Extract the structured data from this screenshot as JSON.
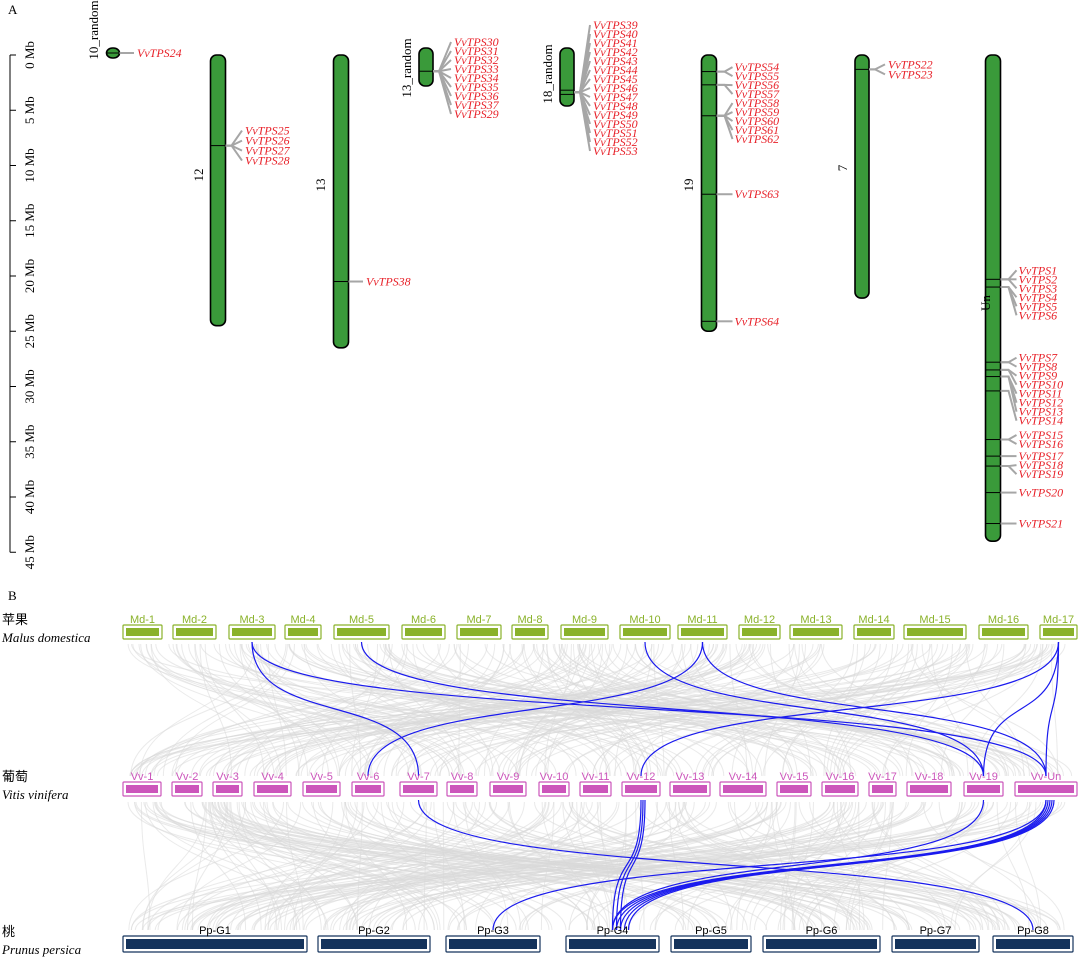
{
  "panel_a": {
    "label": "A",
    "scale": {
      "max_mb": 45,
      "ticks": [
        "0 Mb",
        "5 Mb",
        "10 Mb",
        "15 Mb",
        "20 Mb",
        "25 Mb",
        "30 Mb",
        "35 Mb",
        "40 Mb",
        "45 Mb"
      ]
    },
    "chromosomes": [
      {
        "name": "10_random",
        "length_mb": 1.0,
        "marks": [
          0.5
        ],
        "genes": [
          {
            "label": "VvTPS24",
            "pos_mb": 0.5
          }
        ]
      },
      {
        "name": "12",
        "length_mb": 24.5,
        "marks": [
          8.2
        ],
        "genes": [
          {
            "label": "VvTPS25",
            "pos_mb": 8.2
          },
          {
            "label": "VvTPS26",
            "pos_mb": 8.2
          },
          {
            "label": "VvTPS27",
            "pos_mb": 8.2
          },
          {
            "label": "VvTPS28",
            "pos_mb": 8.2
          }
        ]
      },
      {
        "name": "13",
        "length_mb": 26.5,
        "marks": [
          20.5
        ],
        "genes": [
          {
            "label": "VvTPS38",
            "pos_mb": 20.5
          }
        ]
      },
      {
        "name": "13_random",
        "length_mb": 3.6,
        "marks": [
          2.2
        ],
        "genes": [
          {
            "label": "VvTPS30",
            "pos_mb": 2.2
          },
          {
            "label": "VvTPS31",
            "pos_mb": 2.2
          },
          {
            "label": "VvTPS32",
            "pos_mb": 2.2
          },
          {
            "label": "VvTPS33",
            "pos_mb": 2.2
          },
          {
            "label": "VvTPS34",
            "pos_mb": 2.2
          },
          {
            "label": "VvTPS35",
            "pos_mb": 2.2
          },
          {
            "label": "VvTPS36",
            "pos_mb": 2.2
          },
          {
            "label": "VvTPS37",
            "pos_mb": 2.2
          },
          {
            "label": "VvTPS29",
            "pos_mb": 2.2
          }
        ]
      },
      {
        "name": "18_random",
        "length_mb": 5.5,
        "marks": [
          4.0,
          4.4
        ],
        "genes": [
          {
            "label": "VvTPS39",
            "pos_mb": 4.2
          },
          {
            "label": "VvTPS40",
            "pos_mb": 4.2
          },
          {
            "label": "VvTPS41",
            "pos_mb": 4.2
          },
          {
            "label": "VvTPS42",
            "pos_mb": 4.2
          },
          {
            "label": "VvTPS43",
            "pos_mb": 4.2
          },
          {
            "label": "VvTPS44",
            "pos_mb": 4.2
          },
          {
            "label": "VvTPS45",
            "pos_mb": 4.2
          },
          {
            "label": "VvTPS46",
            "pos_mb": 4.2
          },
          {
            "label": "VvTPS47",
            "pos_mb": 4.2
          },
          {
            "label": "VvTPS48",
            "pos_mb": 4.2
          },
          {
            "label": "VvTPS49",
            "pos_mb": 4.2
          },
          {
            "label": "VvTPS50",
            "pos_mb": 4.2
          },
          {
            "label": "VvTPS51",
            "pos_mb": 4.2
          },
          {
            "label": "VvTPS52",
            "pos_mb": 4.2
          },
          {
            "label": "VvTPS53",
            "pos_mb": 4.2
          }
        ]
      },
      {
        "name": "19",
        "length_mb": 25.0,
        "marks": [
          1.5,
          2.7,
          5.5,
          12.6,
          24.1
        ],
        "genes": [
          {
            "label": "VvTPS54",
            "pos_mb": 1.5
          },
          {
            "label": "VvTPS55",
            "pos_mb": 1.5
          },
          {
            "label": "VvTPS56",
            "pos_mb": 2.7
          },
          {
            "label": "VvTPS57",
            "pos_mb": 2.7
          },
          {
            "label": "VvTPS58",
            "pos_mb": 5.5
          },
          {
            "label": "VvTPS59",
            "pos_mb": 5.5
          },
          {
            "label": "VvTPS60",
            "pos_mb": 5.5
          },
          {
            "label": "VvTPS61",
            "pos_mb": 5.5
          },
          {
            "label": "VvTPS62",
            "pos_mb": 5.5
          },
          {
            "label": "VvTPS63",
            "pos_mb": 12.6
          },
          {
            "label": "VvTPS64",
            "pos_mb": 24.1
          }
        ]
      },
      {
        "name": "7",
        "length_mb": 22.0,
        "marks": [
          1.3
        ],
        "genes": [
          {
            "label": "VvTPS22",
            "pos_mb": 1.3
          },
          {
            "label": "VvTPS23",
            "pos_mb": 1.3
          }
        ]
      },
      {
        "name": "Un",
        "length_mb": 44.0,
        "marks": [
          20.3,
          21.0,
          27.8,
          28.5,
          29.1,
          30.4,
          34.8,
          36.3,
          37.2,
          39.6,
          42.4
        ],
        "genes": [
          {
            "label": "VvTPS1",
            "pos_mb": 20.3
          },
          {
            "label": "VvTPS2",
            "pos_mb": 20.3
          },
          {
            "label": "VvTPS3",
            "pos_mb": 20.3
          },
          {
            "label": "VvTPS4",
            "pos_mb": 21.0
          },
          {
            "label": "VvTPS5",
            "pos_mb": 21.0
          },
          {
            "label": "VvTPS6",
            "pos_mb": 21.0
          },
          {
            "label": "VvTPS7",
            "pos_mb": 27.8
          },
          {
            "label": "VvTPS8",
            "pos_mb": 27.8
          },
          {
            "label": "VvTPS9",
            "pos_mb": 28.5
          },
          {
            "label": "VvTPS10",
            "pos_mb": 28.5
          },
          {
            "label": "VvTPS11",
            "pos_mb": 29.1
          },
          {
            "label": "VvTPS12",
            "pos_mb": 29.1
          },
          {
            "label": "VvTPS13",
            "pos_mb": 29.1
          },
          {
            "label": "VvTPS14",
            "pos_mb": 30.4
          },
          {
            "label": "VvTPS15",
            "pos_mb": 34.8
          },
          {
            "label": "VvTPS16",
            "pos_mb": 34.8
          },
          {
            "label": "VvTPS17",
            "pos_mb": 36.3
          },
          {
            "label": "VvTPS18",
            "pos_mb": 37.2
          },
          {
            "label": "VvTPS19",
            "pos_mb": 37.2
          },
          {
            "label": "VvTPS20",
            "pos_mb": 39.6
          },
          {
            "label": "VvTPS21",
            "pos_mb": 42.4
          }
        ]
      }
    ]
  },
  "panel_b": {
    "label": "B",
    "species": [
      {
        "cn": "苹果",
        "latin": "Malus domestica",
        "color": "#8ab22a",
        "chromosomes": [
          "Md-1",
          "Md-2",
          "Md-3",
          "Md-4",
          "Md-5",
          "Md-6",
          "Md-7",
          "Md-8",
          "Md-9",
          "Md-10",
          "Md-11",
          "Md-12",
          "Md-13",
          "Md-14",
          "Md-15",
          "Md-16",
          "Md-17"
        ]
      },
      {
        "cn": "葡萄",
        "latin": "Vitis vinifera",
        "color": "#cc55bb",
        "chromosomes": [
          "Vv-1",
          "Vv-2",
          "Vv-3",
          "Vv-4",
          "Vv-5",
          "Vv-6",
          "Vv-7",
          "Vv-8",
          "Vv-9",
          "Vv-10",
          "Vv-11",
          "Vv-12",
          "Vv-13",
          "Vv-14",
          "Vv-15",
          "Vv-16",
          "Vv-17",
          "Vv-18",
          "Vv-19",
          "Vv-Un"
        ]
      },
      {
        "cn": "桃",
        "latin": "Prunus persica",
        "color": "#14335c",
        "chromosomes": [
          "Pp-G1",
          "Pp-G2",
          "Pp-G3",
          "Pp-G4",
          "Pp-G5",
          "Pp-G6",
          "Pp-G7",
          "Pp-G8"
        ]
      }
    ],
    "background_link_color": "#d9d9d9",
    "highlight_link_color": "#1a1aee",
    "gene_label_color": "#e8222a",
    "chromosome_fill_a": "#3a9a3a",
    "highlighted_links": [
      [
        "Md-3",
        "Vv-7"
      ],
      [
        "Md-3",
        "Vv-Un"
      ],
      [
        "Md-5",
        "Vv-19"
      ],
      [
        "Md-10",
        "Vv-19"
      ],
      [
        "Md-11",
        "Vv-Un"
      ],
      [
        "Md-11",
        "Vv-6"
      ],
      [
        "Md-17",
        "Vv-12"
      ],
      [
        "Md-17",
        "Vv-19"
      ],
      [
        "Md-17",
        "Vv-Un"
      ],
      [
        "Vv-12",
        "Pp-G4"
      ],
      [
        "Vv-12",
        "Pp-G4"
      ],
      [
        "Vv-12",
        "Pp-G4"
      ],
      [
        "Vv-19",
        "Pp-G4"
      ],
      [
        "Vv-Un",
        "Pp-G4"
      ],
      [
        "Vv-Un",
        "Pp-G4"
      ],
      [
        "Vv-Un",
        "Pp-G4"
      ],
      [
        "Vv-Un",
        "Pp-G4"
      ],
      [
        "Vv-Un",
        "Pp-G4"
      ],
      [
        "Vv-Un",
        "Pp-G3"
      ],
      [
        "Vv-7",
        "Pp-G8"
      ]
    ]
  }
}
